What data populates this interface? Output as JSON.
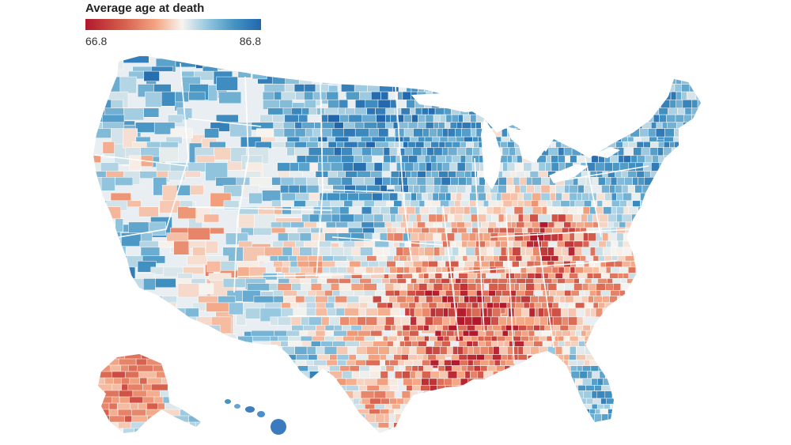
{
  "legend": {
    "title": "Average age at death",
    "min_label": "66.8",
    "max_label": "86.8",
    "colors": [
      "#b2182b",
      "#d6604d",
      "#f4a582",
      "#f7f4ef",
      "#92c5de",
      "#4393c3",
      "#2166ac"
    ]
  },
  "map": {
    "regions": [
      "Contiguous United States",
      "Alaska",
      "Hawaii"
    ],
    "pattern": {
      "high_age_regions": [
        "Great Plains",
        "Upper Midwest",
        "Northeast",
        "Pacific coast",
        "Florida peninsula"
      ],
      "low_age_regions": [
        "Southeast",
        "Mississippi Delta",
        "Appalachia",
        "Oklahoma",
        "Alaska interior",
        "Southwest reservations"
      ]
    }
  }
}
